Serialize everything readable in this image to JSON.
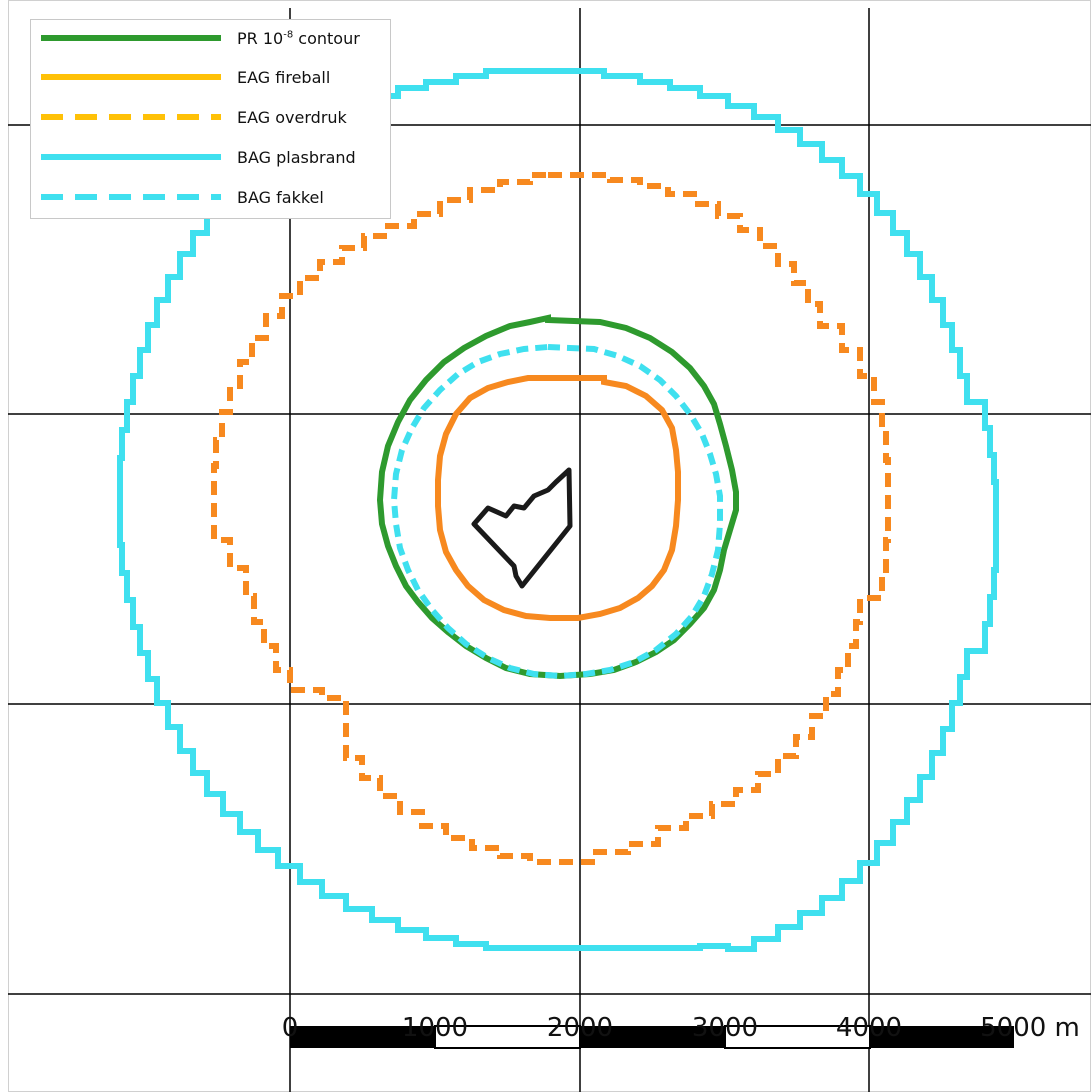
{
  "legend": {
    "items": [
      {
        "label_main": "PR 10",
        "label_sup": "-8",
        "label_rest": " contour",
        "color": "#2e9a2e",
        "style": "solid"
      },
      {
        "label_main": "EAG fireball",
        "label_sup": "",
        "label_rest": "",
        "color": "#ffc107",
        "style": "solid"
      },
      {
        "label_main": "EAG overdruk",
        "label_sup": "",
        "label_rest": "",
        "color": "#ffc107",
        "style": "dashed"
      },
      {
        "label_main": "BAG plasbrand",
        "label_sup": "",
        "label_rest": "",
        "color": "#3fe0ef",
        "style": "solid"
      },
      {
        "label_main": "BAG fakkel",
        "label_sup": "",
        "label_rest": "",
        "color": "#3fe0ef",
        "style": "dashed"
      }
    ]
  },
  "map": {
    "colors": {
      "pr_contour": "#2e9a2e",
      "eag_fireball_map": "#f7891f",
      "eag_overdruk_map": "#f7891f",
      "bag_plasbrand": "#3fe0ef",
      "bag_fakkel": "#3fe0ef",
      "site_outline": "#1a1a1a",
      "grid": "#000000"
    }
  },
  "scalebar": {
    "tick_labels": [
      "0",
      "1000",
      "2000",
      "3000",
      "4000",
      "5000 m"
    ]
  }
}
